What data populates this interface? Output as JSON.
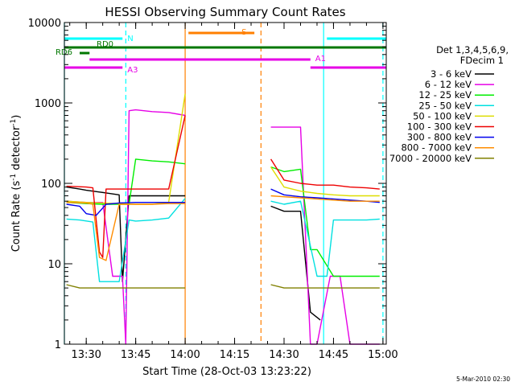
{
  "chart_data": {
    "type": "line",
    "title": "HESSI Observing Summary Count Rates",
    "xlabel": "Start Time (28-Oct-03 13:23:22)",
    "ylabel": "Count Rate (s",
    "ylabel_sup1": "-1",
    "ylabel_mid": " detector",
    "ylabel_sup2": "-1",
    "ylabel_end": ")",
    "y_scale": "log",
    "ylim": [
      1,
      10000
    ],
    "xlim": [
      "13:23:22",
      "15:01:00"
    ],
    "x_ticks": [
      "13:30",
      "13:45",
      "14:00",
      "14:15",
      "14:30",
      "14:45",
      "15:00"
    ],
    "y_ticks": [
      "1",
      "10",
      "100",
      "1000",
      "10000"
    ],
    "legend_header": [
      "Det 1,3,4,5,6,9,",
      "FDecim 1"
    ],
    "legend_position": "right",
    "series": [
      {
        "name": "3 - 6 keV",
        "color": "#000000",
        "x": [
          "13:24",
          "13:28",
          "13:30",
          "13:32",
          "13:34",
          "13:36",
          "13:40",
          "13:41",
          "13:43",
          "13:45",
          "13:50",
          "13:55",
          "14:00",
          "14:23",
          "14:26",
          "14:30",
          "14:33",
          "14:35",
          "14:38",
          "14:41"
        ],
        "y": [
          90,
          85,
          82,
          80,
          78,
          76,
          72,
          6,
          70,
          70,
          70,
          70,
          70,
          null,
          52,
          45,
          45,
          45,
          2.5,
          2
        ]
      },
      {
        "name": "6 - 12 keV",
        "color": "#e600e6",
        "x": [
          "13:24",
          "13:30",
          "13:35",
          "13:38",
          "13:41",
          "13:42",
          "13:43",
          "13:45",
          "13:50",
          "13:55",
          "14:00",
          "14:23",
          "14:26",
          "14:30",
          "14:35",
          "14:38",
          "14:40",
          "14:44",
          "14:47",
          "14:50",
          "14:55",
          "14:59"
        ],
        "y": [
          60,
          58,
          58,
          7,
          7,
          1,
          800,
          820,
          780,
          760,
          700,
          null,
          500,
          500,
          500,
          1,
          1,
          7,
          7,
          1,
          1,
          1
        ]
      },
      {
        "name": "12 - 25 keV",
        "color": "#00ee00",
        "x": [
          "13:24",
          "13:30",
          "13:35",
          "13:40",
          "13:43",
          "13:45",
          "13:50",
          "13:55",
          "14:00",
          "14:23",
          "14:26",
          "14:30",
          "14:35",
          "14:38",
          "14:40",
          "14:45",
          "14:50",
          "14:55",
          "14:59"
        ],
        "y": [
          58,
          56,
          55,
          55,
          55,
          200,
          190,
          185,
          175,
          null,
          160,
          140,
          150,
          15,
          15,
          7,
          7,
          7,
          7
        ]
      },
      {
        "name": "25 - 50 keV",
        "color": "#00e0e0",
        "x": [
          "13:24",
          "13:28",
          "13:32",
          "13:34",
          "13:36",
          "13:40",
          "13:43",
          "13:45",
          "13:50",
          "13:55",
          "14:00",
          "14:23",
          "14:26",
          "14:30",
          "14:35",
          "14:40",
          "14:43",
          "14:45",
          "14:50",
          "14:55",
          "14:59"
        ],
        "y": [
          36,
          35,
          33,
          6,
          6,
          6,
          35,
          34,
          35,
          37,
          65,
          null,
          60,
          55,
          60,
          7,
          7,
          35,
          35,
          35,
          36
        ]
      },
      {
        "name": "50 - 100 keV",
        "color": "#dddd00",
        "x": [
          "13:24",
          "13:30",
          "13:35",
          "13:40",
          "13:45",
          "13:50",
          "13:55",
          "14:00",
          "14:23",
          "14:26",
          "14:30",
          "14:35",
          "14:40",
          "14:45",
          "14:50",
          "14:55",
          "14:59"
        ],
        "y": [
          60,
          58,
          57,
          56,
          55,
          55,
          58,
          1300,
          null,
          160,
          90,
          80,
          75,
          72,
          70,
          70,
          70
        ]
      },
      {
        "name": "100 - 300 keV",
        "color": "#ee0000",
        "x": [
          "13:24",
          "13:30",
          "13:32",
          "13:34",
          "13:35",
          "13:36",
          "13:40",
          "13:45",
          "13:50",
          "13:55",
          "14:00",
          "14:23",
          "14:26",
          "14:30",
          "14:35",
          "14:40",
          "14:45",
          "14:50",
          "14:55",
          "14:59"
        ],
        "y": [
          92,
          90,
          88,
          14,
          12,
          85,
          85,
          85,
          85,
          85,
          700,
          null,
          200,
          110,
          100,
          95,
          95,
          90,
          88,
          85
        ]
      },
      {
        "name": "300 - 800 keV",
        "color": "#0000ee",
        "x": [
          "13:24",
          "13:28",
          "13:30",
          "13:33",
          "13:36",
          "13:40",
          "13:45",
          "13:50",
          "13:55",
          "14:00",
          "14:23",
          "14:26",
          "14:30",
          "14:35",
          "14:40",
          "14:45",
          "14:50",
          "14:55",
          "14:59"
        ],
        "y": [
          55,
          52,
          42,
          40,
          55,
          57,
          58,
          58,
          58,
          58,
          null,
          85,
          72,
          68,
          66,
          64,
          62,
          60,
          58
        ]
      },
      {
        "name": "800 - 7000 keV",
        "color": "#ff8c00",
        "x": [
          "13:24",
          "13:30",
          "13:32",
          "13:34",
          "13:36",
          "13:40",
          "13:45",
          "13:50",
          "13:55",
          "14:00",
          "14:23",
          "14:26",
          "14:30",
          "14:35",
          "14:40",
          "14:45",
          "14:50",
          "14:55",
          "14:59"
        ],
        "y": [
          58,
          57,
          55,
          12,
          11,
          55,
          55,
          55,
          56,
          56,
          null,
          70,
          68,
          66,
          64,
          62,
          60,
          60,
          60
        ]
      },
      {
        "name": "7000 - 20000 keV",
        "color": "#808000",
        "x": [
          "13:24",
          "13:28",
          "13:32",
          "13:36",
          "13:40",
          "13:45",
          "13:50",
          "13:55",
          "14:00",
          "14:23",
          "14:26",
          "14:30",
          "14:35",
          "14:40",
          "14:45",
          "14:50",
          "14:55",
          "14:59"
        ],
        "y": [
          5.5,
          5,
          5,
          5,
          5,
          5,
          5,
          5,
          5,
          null,
          5.5,
          5,
          5,
          5,
          5,
          5,
          5,
          5
        ]
      }
    ],
    "annotations": {
      "bars": [
        {
          "label": "N",
          "color": "#00ffff",
          "x_start": "13:23:22",
          "x_end": "13:41",
          "x2_start": "14:43",
          "x2_end": "15:01"
        },
        {
          "label": "RD0",
          "color": "#007700",
          "x_start": "13:23:22",
          "x_end": "15:01"
        },
        {
          "label": "RD6",
          "color": "#007700",
          "x_start": "13:28",
          "x_end": "13:31"
        },
        {
          "label": "A1",
          "color": "#e600e6",
          "x_start": "13:31",
          "x_end": "14:38"
        },
        {
          "label": "A3",
          "color": "#e600e6",
          "x_start": "13:23:22",
          "x_end": "13:41",
          "x2_start": "14:38",
          "x2_end": "15:01"
        },
        {
          "label": "S",
          "color": "#ff7f00",
          "x_start": "14:01",
          "x_end": "14:21"
        }
      ],
      "vlines": [
        {
          "x": "13:23:22",
          "color": "#00ffff",
          "dash": false
        },
        {
          "x": "13:42",
          "color": "#00ffff",
          "dash": true
        },
        {
          "x": "14:00",
          "color": "#ff7f00",
          "dash": false
        },
        {
          "x": "14:23",
          "color": "#ff7f00",
          "dash": true
        },
        {
          "x": "14:42",
          "color": "#00ffff",
          "dash": false
        },
        {
          "x": "15:00",
          "color": "#00ffff",
          "dash": true
        }
      ]
    }
  },
  "stamp": "5-Mar-2010 02:30"
}
